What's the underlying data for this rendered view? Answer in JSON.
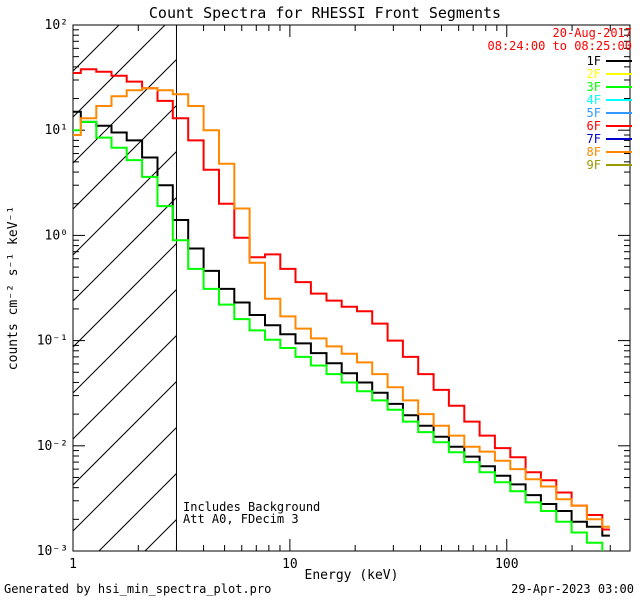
{
  "title": "Count Spectra for RHESSI Front Segments",
  "header": {
    "date": "20-Aug-2017",
    "time_range": "08:24:00 to 08:25:00",
    "accent_color": "#ff0000"
  },
  "annotations": {
    "background": "Includes Background",
    "attenuator": "Att A0, FDecim 3"
  },
  "footer": {
    "generated_by": "Generated by hsi_min_spectra_plot.pro",
    "timestamp": "29-Apr-2023 03:00"
  },
  "axes": {
    "xlabel": "Energy (keV)",
    "ylabel": "counts cm⁻² s⁻¹ keV⁻¹",
    "x_ticks": [
      {
        "value": 1,
        "label": "1"
      },
      {
        "value": 10,
        "label": "10"
      },
      {
        "value": 100,
        "label": "100"
      }
    ],
    "y_ticks": [
      {
        "value": 100,
        "label": "10²"
      },
      {
        "value": 10,
        "label": "10¹"
      },
      {
        "value": 1,
        "label": "10⁰"
      },
      {
        "value": 0.1,
        "label": "10⁻¹"
      },
      {
        "value": 0.01,
        "label": "10⁻²"
      },
      {
        "value": 0.001,
        "label": "10⁻³"
      }
    ]
  },
  "chart_data": {
    "type": "line",
    "title": "Count Spectra for RHESSI Front Segments",
    "xlabel": "Energy (keV)",
    "ylabel": "counts cm^-2 s^-1 keV^-1",
    "x_scale": "log",
    "y_scale": "log",
    "xlim": [
      1,
      370
    ],
    "ylim": [
      0.001,
      100
    ],
    "grid": false,
    "legend_position": "top-right",
    "hatch_region": {
      "from": 1,
      "to": 3
    },
    "energies": [
      1.0,
      1.18,
      1.39,
      1.63,
      1.92,
      2.26,
      2.66,
      3.13,
      3.69,
      4.34,
      5.11,
      6.01,
      7.08,
      8.33,
      9.8,
      11.5,
      13.6,
      16.0,
      18.8,
      22.1,
      26.0,
      30.6,
      36.0,
      42.4,
      49.9,
      58.7,
      69.1,
      81.3,
      95.7,
      112.6,
      132.5,
      155.9,
      183.5,
      215.9,
      254.1,
      299.0
    ],
    "series": [
      {
        "name": "1F",
        "color": "#000000",
        "values": [
          15,
          12,
          11,
          9.5,
          8.0,
          5.5,
          3.0,
          1.4,
          0.75,
          0.46,
          0.31,
          0.23,
          0.175,
          0.14,
          0.115,
          0.094,
          0.076,
          0.061,
          0.049,
          0.04,
          0.032,
          0.025,
          0.0195,
          0.0155,
          0.0122,
          0.0098,
          0.0079,
          0.0064,
          0.0052,
          0.0043,
          0.0034,
          0.0028,
          0.0024,
          0.0019,
          0.0017,
          0.0014
        ]
      },
      {
        "name": "2F",
        "color": "#ffff00",
        "values": []
      },
      {
        "name": "3F",
        "color": "#00ff00",
        "values": [
          10,
          12,
          8.5,
          6.8,
          5.2,
          3.6,
          1.9,
          0.9,
          0.48,
          0.31,
          0.22,
          0.16,
          0.125,
          0.102,
          0.085,
          0.07,
          0.058,
          0.048,
          0.04,
          0.033,
          0.027,
          0.022,
          0.017,
          0.0135,
          0.0108,
          0.0087,
          0.007,
          0.0056,
          0.0045,
          0.0037,
          0.0029,
          0.0024,
          0.0019,
          0.0015,
          0.0012,
          0.00095
        ]
      },
      {
        "name": "4F",
        "color": "#00ffff",
        "values": []
      },
      {
        "name": "5F",
        "color": "#3399ff",
        "values": []
      },
      {
        "name": "6F",
        "color": "#ff0000",
        "values": [
          35,
          38,
          36,
          33,
          29,
          25,
          19,
          13,
          8.0,
          4.2,
          2.0,
          0.95,
          0.62,
          0.66,
          0.48,
          0.36,
          0.28,
          0.24,
          0.21,
          0.19,
          0.145,
          0.1,
          0.07,
          0.048,
          0.034,
          0.024,
          0.017,
          0.0125,
          0.0095,
          0.0078,
          0.0056,
          0.0047,
          0.0036,
          0.0027,
          0.0022,
          0.0016
        ]
      },
      {
        "name": "7F",
        "color": "#0000cc",
        "values": []
      },
      {
        "name": "8F",
        "color": "#ff8800",
        "values": [
          9,
          13,
          17,
          21,
          24,
          25,
          24,
          22,
          17,
          10,
          4.8,
          1.8,
          0.55,
          0.25,
          0.17,
          0.13,
          0.105,
          0.088,
          0.075,
          0.062,
          0.048,
          0.036,
          0.027,
          0.02,
          0.0155,
          0.0125,
          0.0098,
          0.0088,
          0.0072,
          0.006,
          0.0048,
          0.0041,
          0.0031,
          0.0027,
          0.002,
          0.0017
        ]
      },
      {
        "name": "9F",
        "color": "#999900",
        "values": []
      }
    ]
  }
}
